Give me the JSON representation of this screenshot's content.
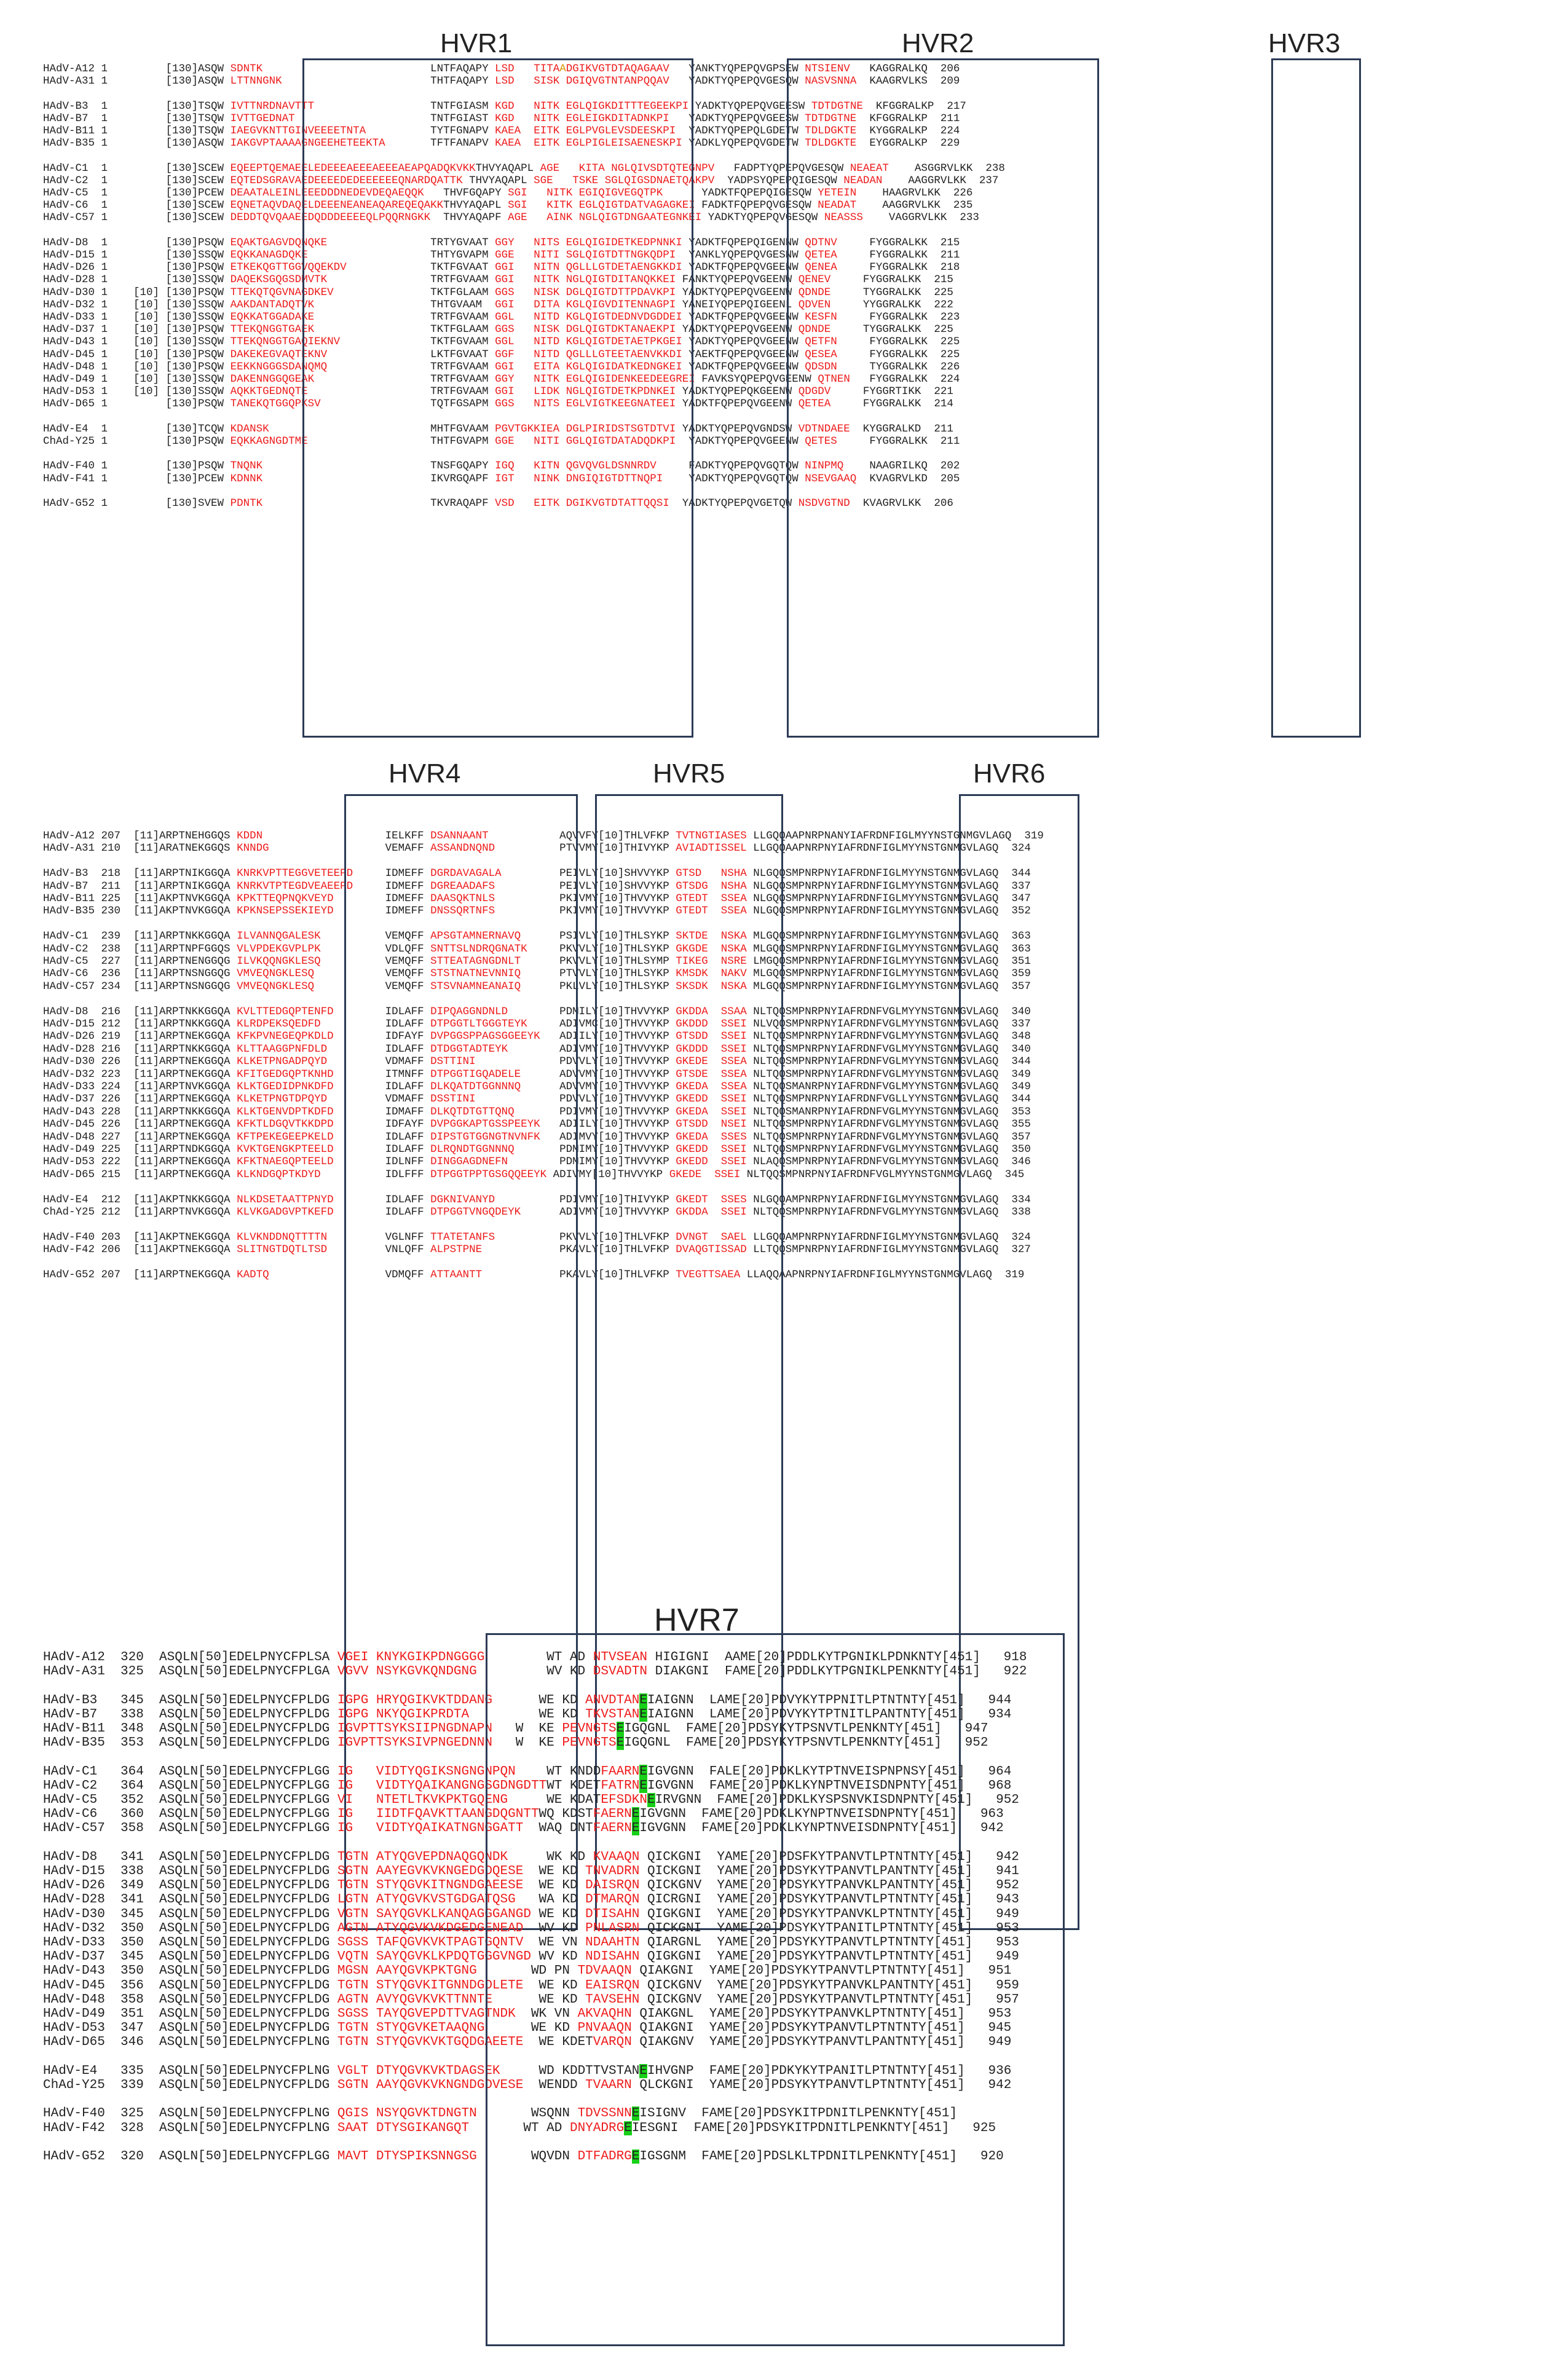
{
  "colors": {
    "text": "#222222",
    "hypervariable": "#ee1c1c",
    "substitution": "#d79400",
    "conserved_highlight": "#18d018",
    "box": "#2b3a55"
  },
  "panel_titles": {
    "p1": [
      "HVR1",
      "HVR2",
      "HVR3"
    ],
    "p2": [
      "HVR4",
      "HVR5",
      "HVR6"
    ],
    "p3": [
      "HVR7"
    ]
  },
  "panel1": [
    "K|HAdV-A12 1         [130]ASQW |R|SDNTK                          |K|LNTFAQAPY |R|LSD  |K| |R|TITA|O|A|R|DGIKVGTDTAQAGAAV  |K| YANKTYQPEPQVGPSEW |R|NTSIENV  |K| KAGGRALKQ  206",
    "K|HAdV-A31 1         [130]ASQW |R|LTTNNGNK                       |K|THTFAQAPY |R|LSD  |K| |R|SISK|K| |R|DGIQVGTNTANPQQAV  |K| YADKTYQPEPQVGESQW |R|NASVSNNA |K| KAAGRVLKS  209",
    "",
    "K|HAdV-B3  1         [130]TSQW |R|IVTTNRDNAVTTT                  |K|TNTFGIASM |R|KGD  |K| |R|NITK|K| |R|EGLQIGKDITTTEGEEKPI|K| YADKTYQPEPQVGEESW |R|TDTDGTNE |K| KFGGRALKP  217",
    "K|HAdV-B7  1         [130]TSQW |R|IVTTGEDNAT                     |K|TNTFGIAST |R|KGD  |K| |R|NITK|K| |R|EGLEIGKDITADNKPI  |K| YADKTYQPEPQVGEESW |R|TDTDGTNE |K| KFGGRALKP  211",
    "K|HAdV-B11 1         [130]TSQW |R|IAEGVKNTTGINVEEEETNTA          |K|TYTFGNAPV |R|KAEA |K| |R|EITK|K| |R|EGLPVGLEVSDEESKPI |K| YADKTYQPEPQLGDETW |R|TDLDGKTE |K| KYGGRALKP  224",
    "K|HAdV-B35 1         [130]ASQW |R|IAKGVPTAAAAGNGEEHETEEKTA       |K|TFTFANAPV |R|KAEA |K| |R|EITK|K| |R|EGLPIGLEISAENESKPI|K| YADKLYQPEPQVGDETW |R|TDLDGKTE |K| EYGGRALKP  229",
    "",
    "K|HAdV-C1  1         [130]SCEW |R|EQEEPTQEMAEELEDEEEAEEEAEEEAEAPQADQKVKK|K|THVYAQAPL |R|AGE  |K| |R|KITA|K| |R|NGLQIVSDTQTEGNPV  |K| FADPTYQPEPQVGESQW |R|NEAEAT   |K| ASGGRVLKK  238",
    "K|HAdV-C2  1         [130]SCEW |R|EQTEDSGRAVAEDEEEEDEDEEEEEEQNARDQATTK |K|THVYAQAPL |R|SGE  |K| |R|TSKE|K| |R|SGLQIGSDNAETQAKPV |K| YADPSYQPEPQIGESQW |R|NEADAN   |K| AAGGRVLKK  237",
    "K|HAdV-C5  1         [130]PCEW |R|DEAATALEINLEEEDDDNEDEVDEQAEQQK   |K|THVFGQAPY |R|SGI  |K| |R|NITK|K| |R|EGIQIGVEGQTPK     |K| YADKTFQPEPQIGESQW |R|YETEIN   |K| HAAGRVLKK  226",
    "K|HAdV-C6  1         [130]SCEW |R|EQNETAQVDAQELDEEENEANEAQAREQEQAKK|K|THVYAQAPL |R|SGI  |K| |R|KITK|K| |R|EGLQIGTDATVAGAGKEI|K| FADKTFQPEPQVGESQW |R|NEADAT   |K| AAGGRVLKK  235",
    "K|HAdV-C57 1         [130]SCEW |R|DEDDTQVQAAEEDQDDDEEEEQLPQQRNGKK  |K|THVYAQAPF |R|AGE  |K| |R|AINK|K| |R|NGLQIGTDNGAATEGNKEI|K| YADKTYQPEPQVGESQW |R|NEASSS   |K| VAGGRVLKK  233",
    "",
    "K|HAdV-D8  1         [130]PSQW |R|EQAKTGAGVDQNQKE                |K|TRTYGVAAT |R|GGY  |K| |R|NITS|K| |R|EGLQIGIDETKEDPNNKI|K| YADKTFQPEPQIGENNW |R|QDTNV    |K| FYGGRALKK  215",
    "K|HAdV-D15 1         [130]SSQW |R|EQKKANAGDQKE                   |K|THTYGVAPM |R|GGE  |K| |R|NITI|K| |R|SGLQIGTDTTNGKQDPI |K| YANKLYQPEPQVGESNW |R|QETEA    |K| FYGGRALKK  211",
    "K|HAdV-D26 1         [130]PSQW |R|ETKEKQGTTGGVQQEKDV             |K|TKTFGVAAT |R|GGI  |K| |R|NITN|K| |R|QGLLLGTDETAENGKKDI|K| YADKTFQPEPQVGEENW |R|QENEA    |K| FYGGRALKK  218",
    "K|HAdV-D28 1         [130]SSQW |R|DAQEKSGQGSDMVTK                |K|TRTFGVAAM |R|GGI  |K| |R|NITK|K| |R|NGLQIGTDITANQKKEI|K| FANKTYQPEPQVGEENW |R|QENEV    |K| FYGGRALKK  215",
    "K|HAdV-D30 1    [10] [130]PSQW |R|TTEKQTQGVNAGDKEV               |K|TKTFGLAAM |R|GGS  |K| |R|NISK|K| |R|DGLQIGTDTTPDAVKPI|K| YADKTYQPEPQVGEENW |R|QDNDE    |K| TYGGRALKK  225",
    "K|HAdV-D32 1    [10] [130]SSQW |R|AAKDANTADQTVK                  |K|THTGVAAM  |R|GGI  |K| |R|DITA|K| |R|KGLQIGVDITENNAGPI|K| YANEIYQPEPQIGEENL |R|QDVEN    |K| YYGGRALKK  222",
    "K|HAdV-D33 1    [10] [130]SSQW |R|EQKKATGGADAKE                  |K|TRTFGVAAM |R|GGL  |K| |R|NITD|K| |R|KGLQIGTDEDNVDGDDEI|K| YADKTFQPEPQVGEENW |R|KESFN    |K| FYGGRALKK  223",
    "K|HAdV-D37 1    [10] [130]PSQW |R|TTEKQNGGTGAEK                  |K|TKTFGLAAM |R|GGS  |K| |R|NISK|K| |R|DGLQIGTDKTANAEKPI|K| YADKTYQPEPQVGEENW |R|QDNDE    |K| TYGGRALKK  225",
    "K|HAdV-D43 1    [10] [130]SSQW |R|TTEKQNGGTGAQIEKNV              |K|TKTFGVAAM |R|GGL  |K| |R|NITD|K| |R|KGLQIGTDETAETPKGEI|K| YADKTYQPEPQVGEENW |R|QETFN    |K| FYGGRALKK  225",
    "K|HAdV-D45 1    [10] [130]PSQW |R|DAKEKEGVAQTEKNV                |K|LKTFGVAAT |R|GGF  |K| |R|NITD|K| |R|QGLLLGTEETAENVKKDI|K| YAEKTFQPEPQVGEENW |R|QESEA    |K| FYGGRALKK  225",
    "K|HAdV-D48 1    [10] [130]PSQW |R|EEKKNGGGSDANQMQ                |K|TRTFGVAAM |R|GGI  |K| |R|EITA|K| |R|KGLQIGIDATKEDNGKEI|K| YADKTFQPEPQVGEENW |R|QDSDN    |K| TYGGRALKK  226",
    "K|HAdV-D49 1    [10] [130]SSQW |R|DAKENNGGQGEAK                  |K|TRTFGVAAM |R|GGY  |K| |R|NITK|K| |R|EGLQIGIDENKEEDEEGREI|K| FAVKSYQPEPQVGEENW |R|QTNEN  |K| FYGGRALKK  224",
    "K|HAdV-D53 1    [10] [130]SSQW |R|AQKKTGEDNQTE                   |K|TRTFGVAAM |R|GGI  |K| |R|LIDK|K| |R|NGLQIGTDETKPDNKEI|K| YADKTYQPEPQKGEENW |R|QDGDV    |K| FYGGRTIKK  221",
    "K|HAdV-D65 1         [130]PSQW |R|TANEKQTGGQPKSV                 |K|TQTFGSAPM |R|GGS  |K| |R|NITS|K| |R|EGLVIGTKEEGNATEEI|K| YADKTFQPEPQVGEENW |R|QETEA    |K| FYGGRALKK  214",
    "",
    "K|HAdV-E4  1         [130]TCQW |R|KDANSK                         |K|MHTFGVAAM |R|PGVTGKKIEA|K| |R|DGLPIRIDSTSGTDTVI|K| YADKTYQPEPQVGNDSW |R|VDTNDAEE |K| KYGGRALKD  211",
    "K|ChAd-Y25 1         [130]PSQW |R|EQKKAGNGDTME                   |K|THTFGVAPM |R|GGE  |K| |R|NITI|K| |R|GGLQIGTDATADQDKPI |K| YADKTYQPEPQVGEENW |R|QETES    |K| FYGGRALKK  211",
    "",
    "K|HAdV-F40 1         [130]PSQW |R|TNQNK                          |K|TNSFGQAPY |R|IGQ  |K| |R|KITN|K| |R|QGVQVGLDSNNRDV    |K| FADKTYQPEPQVGQTQW |R|NINPMQ   |K| NAAGRILKQ  202",
    "K|HAdV-F41 1         [130]PCEW |R|KDNNK                          |K|IKVRGQAPF |R|IGT  |K| |R|NINK|K| |R|DNGIQIGTDTTNQPI   |K| YADKTYQPEPQVGQTQW |R|NSEVGAAQ |K| KVAGRVLKD  205",
    "",
    "K|HAdV-G52 1         [130]SVEW |R|PDNTK                          |K|TKVRAQAPF |R|VSD  |K| |R|EITK|K| |R|DGIKVGTDTATTQQSI |K| YADKTYQPEPQVGETQW |R|NSDVGTND |K| KVAGRVLKK  206"
  ],
  "panel2": [
    "K|HAdV-A12 207  [11]ARPTNEHGGQS |R|KDDN                  |K| IELKFF |R|DSANNAANT          |K| AQVVFY[10]THLVFKP |R|TVTNGTIASES|K| LLGQQAAPNRPNANYIAFRDNFIGLMYYNSTGNMGVLAGQ  319",
    "K|HAdV-A31 210  [11]ARATNEKGGQS |R|KNNDG                 |K| VEMAFF |R|ASSANDNQND         |K| PTVVMY[10]THIVYKP |R|AVIADTISSEL|K| LLGQQAAPNRPNYIAFRDNFIGLMYYNSTGNMGVLAGQ  324",
    "",
    "K|HAdV-B3  218  [11]ARPTNIKGGQA |R|KNRKVPTTEGGVETEEPD    |K| IDMEFF |R|DGRDAVAGALA        |K| PEIVLY[10]SHVVYKP |R|GTSD   NSHA|K| NLGQQSMPNRPNYIAFRDNFIGLMYYNSTGNMGVLAGQ  344",
    "K|HAdV-B7  211  [11]ARPTNIKGGQA |R|KNRKVTPTEGDVEAEEPD    |K| IDMEFF |R|DGREAADAFS         |K| PEIVLY[10]SHVVYKP |R|GTSDG  NSHA|K| NLGQQSMPNRPNYIAFRDNFIGLMYYNSTGNMGVLAGQ  337",
    "K|HAdV-B11 225  [11]AKPTNVKGGQA |R|KPKTTEQPNQKVEYD       |K| IDMEFF |R|DAASQKTNLS         |K| PKIVMY[10]THVVYKP |R|GTEDT  SSEA|K| NLGQQSMPNRPNYIAFRDNFIGLMYYNSTGNMGVLAGQ  347",
    "K|HAdV-B35 230  [11]AKPTNVKGGQA |R|KPKNSEPSSEKIEYD       |K| IDMEFF |R|DNSSQRTNFS         |K| PKIVMY[10]THVVYKP |R|GTEDT  SSEA|K| NLGQQSMPNRPNYIAFRDNFIGLMYYNSTGNMGVLAGQ  352",
    "",
    "K|HAdV-C1  239  [11]ARPTNKKGGQA |R|ILVANNQGALESK         |K| VEMQFF |R|APSGTAMNERNAVQ     |K| PSIVLY[10]THLSYKP |R|SKTDE  NSKA|K| MLGQQSMPNRPNYIAFRDNFIGLMYYNSTGNMGVLAGQ  363",
    "K|HAdV-C2  238  [11]ARPTNPFGGQS |R|VLVPDEKGVPLPK         |K| VDLQFF |R|SNTTSLNDRQGNATK    |K| PKVVLY[10]THLSYKP |R|GKGDE  NSKA|K| MLGQQSMPNRPNYIAFRDNFIGLMYYNSTGNMGVLAGQ  363",
    "K|HAdV-C5  227  [11]ARPTNENGGQG |R|ILVKQQNGKLESQ         |K| VEMQFF |R|STTEATAGNGDNLT     |K| PKVVLY[10]THLSYMP |R|TIKEG  NSRE|K| LMGQQSMPNRPNYIAFRDNFIGLMYYNSTGNMGVLAGQ  351",
    "K|HAdV-C6  236  [11]ARPTNSNGGQG |R|VMVEQNGKLESQ          |K| VEMQFF |R|STSTNATNEVNNIQ     |K| PTVVLY[10]THLSYKP |R|KMSDK  NAKV|K| MLGQQSMPNRPNYIAFRDNFIGLMYYNSTGNMGVLAGQ  359",
    "K|HAdV-C57 234  [11]ARPTNSNGGQG |R|VMVEQNGKLESQ          |K| VEMQFF |R|STSVNAMNEANAIQ     |K| PKLVLY[10]THLSYKP |R|SKSDK  NSKA|K| MLGQQSMPNRPNYIAFRDNFIGLMYYNSTGNMGVLAGQ  357",
    "",
    "K|HAdV-D8  216  [11]ARPTNKKGGQA |R|KVLTTEDGQPTENFD       |K| IDLAFF |R|DIPQAGGNDNLD       |K| PDMILY[10]THVVYKP |R|GKDDA  SSAA|K| NLTQQSMPNRPNYIAFRDNFVGLMYYNSTGNMGVLAGQ  340",
    "K|HAdV-D15 212  [11]ARPTNKKGGQA |R|KLRDPEKSQEDFD         |K| IDLAFF |R|DTPGGTLTGGGTEYK    |K| ADIVMC[10]THVVYKP |R|GKDDD  SSEI|K| NLVQQSMPNRPNYIAFRDNFVGLMYYNSTGNMGVLAGQ  337",
    "K|HAdV-D26 219  [11]ARPTNEKGGQA |R|KFKPVNEGEQPKDLD       |K| IDFAYF |R|DVPGGSPPAGSGGEEYK  |K| ADIILY[10]THVVYKP |R|GTSDD  SSEI|K| NLTQQSMPNRPNYIAFRDNFVGLMYYNSTGNMGVLAGQ  348",
    "K|HAdV-D28 216  [11]ARPTNKKGGQA |R|KLTTAAGGPNFDLD        |K| IDLAFF |R|DTDGGTADTEYK       |K| ADIVMY[10]THVVYKP |R|GKDDD  SSEI|K| NLTQQSMPNRPNYIAFRDNFVGLMYYNSTGNMGVLAGQ  340",
    "K|HAdV-D30 226  [11]ARPTNEKGGQA |R|KLKETPNGADPQYD        |K| VDMAFF |R|DSTTINI            |K| PDVVLY[10]THVVYKP |R|GKEDE  SSEA|K| NLTQQSMPNRPNYIAFRDNFVGLMYYNSTGNMGVLAGQ  344",
    "K|HAdV-D32 223  [11]ARPTNEKGGQA |R|KFITGEDGQPTKNHD       |K| ITMNFF |R|DTPGGTIGQADELE     |K| ADVVMY[10]THVVYKP |R|GTSDE  SSEA|K| NLTQQSMPNRPNYIAFRDNFVGLMYYNSTGNMGVLAGQ  349",
    "K|HAdV-D33 224  [11]ARPTNVKGGQA |R|KLKTGEDIDPNKDFD       |K| IDLAFF |R|DLKQATDTGGNNNQ     |K| ADVVMY[10]THVVYKP |R|GKEDA  SSEA|K| NLTQQSMANRPNYIAFRDNFVGLMYYNSTGNMGVLAGQ  349",
    "K|HAdV-D37 226  [11]ARPTNEKGGQA |R|KLKETPNGTDPQYD        |K| VDMAFF |R|DSSTINI            |K| PDVVLY[10]THVVYKP |R|GKEDD  SSEI|K| NLTQQSMPNRPNYIAFRDNFVGLLYYNSTGNMGVLAGQ  344",
    "K|HAdV-D43 228  [11]ARPTNKKGGQA |R|KLKTGENVDPTKDFD       |K| IDMAFF |R|DLKQTDTGTTQNQ      |K| PDIVMY[10]THVVYKP |R|GKEDA  SSEI|K| NLTQQSMANRPNYIAFRDNFVGLMYYNSTGNMGVLAGQ  353",
    "K|HAdV-D45 226  [11]ARPTNEKGGQA |R|KFKTLDGQVTKKDPD       |K| IDFAYF |R|DVPGGKAPTGSSPEEYK  |K| ADIILY[10]THVVYKP |R|GTSDD  NSEI|K| NLTQQSMPNRPNYIAFRDNFVGLMYYNSTGNMGVLAGQ  355",
    "K|HAdV-D48 227  [11]ARPTNEKGGQA |R|KFTPEKEGEEPKELD       |K| IDLAFF |R|DIPSTGTGGNGTNVNFK  |K| ADIMVY[10]THVVYKP |R|GKEDA  SSES|K| NLTQQSMPNRPNYIAFRDNFVGLMYYNSTGNMGVLAGQ  357",
    "K|HAdV-D49 225  [11]ARPTNDKGGQA |R|KVKTGENGKPTEELD       |K| IDLAFF |R|DLRQNDTGGNNNQ      |K| PDMIMY[10]THVVYKP |R|GKEDD  SSEI|K| NLTQQSMPNRPNYIAFRDNFVGLMYYNSTGNMGVLAGQ  350",
    "K|HAdV-D53 222  [11]ARPTNEKGGQA |R|KFKTNAEGQPTEELD       |K| IDLNFF |R|DINGGAGDNEFN       |K| PDMIMY[10]THVVYKP |R|GKEDD  SSEI|K| NLAQQSMPNRPNYIAFRDNFVGLMYYNSTGNMGVLAGQ  346",
    "K|HAdV-D65 215  [11]ARPTNEKGGQA |R|KLKNDGQPTKDYD         |K| IDLFFF |R|DTPGGTPPTGSGQQEEYK|K| ADIVMY[10]THVVYKP |R|GKEDE  SSEI|K| NLTQQSMPNRPNYIAFRDNFVGLMYYNSTGNMGVLAGQ  345",
    "",
    "K|HAdV-E4  212  [11]AKPTNKKGGQA |R|NLKDSETAATTPNYD       |K| IDLAFF |R|DGKNIVANYD         |K| PDIVMY[10]THIVYKP |R|GKEDT  SSES|K| NLGQQAMPNRPNYIAFRDNFIGLMYYNSTGNMGVLAGQ  334",
    "K|ChAd-Y25 212  [11]ARPTNVKGGQA |R|KLVKGADGVPTKEFD       |K| IDLAFF |R|DTPGGTVNGQDEYK     |K| ADIVMY[10]THVVYKP |R|GKDDA  SSEI|K| NLTQQSMPNRPNYIAFRDNFVGLMYYNSTGNMGVLAGQ  338",
    "",
    "K|HAdV-F40 203  [11]AKPTNEKGGQA |R|KLVKNDDNQTTTTN        |K| VGLNFF |R|TTATETANFS         |K| PKVVLY[10]THLVFKP |R|DVNGT  SAEL|K| LLGQQAMPNRPNYIAFRDNFIGLMYYNSTGNMGVLAGQ  324",
    "K|HAdV-F42 206  [11]AKPTNEKGGQA |R|SLITNGTDQTLTSD        |K| VNLQFF |R|ALPSTPNE           |K| PKAVLY[10]THLVFKP |R|DVAQGTISSAD|K| LLTQQSMPNRPNYIAFRDNFIGLMYYNSTGNMGVLAGQ  327",
    "",
    "K|HAdV-G52 207  [11]ARPTNEKGGQA |R|KADTQ                 |K| VDMQFF |R|ATTAANTT           |K| PKAVLY[10]THLVFKP |R|TVEGTTSAEA|K| LLAQQAAPNRPNYIAFRDNFIGLMYYNSTGNMGVLAGQ  319"
  ],
  "panel3": [
    "K|HAdV-A12  320  ASQLN[50]EDELPNYCFPLSA |R|VGEI KNYKGIKPDNGGGG       |K| WT AD |R|NTVSEAN|K| HIGIGNI |K| AAME[20]PDDLKYTPGNIKLPDNKNTY[451]   918",
    "K|HAdV-A31  325  ASQLN[50]EDELPNYCFPLGA |R|VGVV NSYKGVKQNDGNG        |K| WV KD |R|DSVADTN|K| DIAKGNI |K| FAME[20]PDDLKYTPGNIKLPENKNTY[451]   922",
    "",
    "K|HAdV-B3   345  ASQLN[50]EDELPNYCFPLDG |R|IGPG HRYQGIKVKTDDANG     |K| WE KD |R|ANVDTAN|G|E|K|IAIGNN |K| LAME[20]PDVYKYTPPNITLPTNTNTY[451]   944",
    "K|HAdV-B7   338  ASQLN[50]EDELPNYCFPLDG |R|IGPG NKYQGIKPRDTA        |K| WE KD |R|TKVSTAN|G|E|K|IAIGNN |K| LAME[20]PDVYKYTPTNITLPANTNTY[451]   934",
    "K|HAdV-B11  348  ASQLN[50]EDELPNYCFPLDG |R|IGVPTTSYKSIIPNGDNAPN  |K| W  KE |R|PEVNGTS|G|E|K|IGQGNL |K| FAME[20]PDSYKYTPSNVTLPENKNTY[451]   947",
    "K|HAdV-B35  353  ASQLN[50]EDELPNYCFPLDG |R|IGVPTTSYKSIVPNGEDNNN  |K| W  KE |R|PEVNGTS|G|E|K|IGQGNL |K| FAME[20]PDSYKYTPSNVTLPENKNTY[451]   952",
    "",
    "K|HAdV-C1   364  ASQLN[50]EDELPNYCFPLGG |R|IG   VIDTYQGIKSNGNGNPQN   |K| WT KNDD|R|FAARN|G|E|K|IGVGNN |K| FALE[20]PDKLKYTPTNVEISPNPNSY[451]   964",
    "K|HAdV-C2   364  ASQLN[50]EDELPNYCFPLGG |R|IG   VIDTYQAIKANGNGSGDNGDTT|K|WT KDET|R|FATRN|G|E|K|IGVGNN |K| FAME[20]PDKLKYNPTNVEISDNPNTY[451]   968",
    "K|HAdV-C5   352  ASQLN[50]EDELPNYCFPLGG |R|VI   NTETLTKVKPKTGQENG    |K| WE KDAT|R|EFSDKN|G|E|K|IRVGNN |K| FAME[20]PDKLKYSPSNVKISDNPNTY[451]   952",
    "K|HAdV-C6   360  ASQLN[50]EDELPNYCFPLGG |R|IG   IIDTFQAVKTTAANGDQGNTT|K|WQ KDST|R|FAERN|G|E|K|IGVGNN |K| FAME[20]PDKLKYNPTNVEISDNPNTY[451]   963",
    "K|HAdV-C57  358  ASQLN[50]EDELPNYCFPLGG |R|IG   VIDTYQAIKATNGNGGATT |K| WAQ DNT|R|FAERN|G|E|K|IGVGNN |K| FAME[20]PDKLKYNPTNVEISDNPNTY[451]   942",
    "",
    "K|HAdV-D8   341  ASQLN[50]EDELPNYCFPLDG |R|TGTN ATYQGVEPDNAQGQNDK    |K| WK KD |R|KVAAQN|K| QICKGNI |K| YAME[20]PDSFKYTPANVTLPTNTNTY[451]   942",
    "K|HAdV-D15  338  ASQLN[50]EDELPNYCFPLDG |R|SGTN AAYEGVKVKNGEDGDQESE |K| WE KD |R|TNVADRN|K| QICKGNI |K| YAME[20]PDSYKYTPANVTLPANTNTY[451]   941",
    "K|HAdV-D26  349  ASQLN[50]EDELPNYCFPLDG |R|TGTN STYQGVKITNGNDGAEESE |K| WE KD |R|DAISRQN|K| QICKGNV |K| YAME[20]PDSYKYTPANVKLPANTNTY[451]   952",
    "K|HAdV-D28  341  ASQLN[50]EDELPNYCFPLDG |R|LGTN ATYQGVKVSTGDGATQSG  |K| WA KD |R|DTMARQN|K| QICRGNI |K| YAME[20]PDSYKYTPANVTLPTNTNTY[451]   943",
    "K|HAdV-D30  345  ASQLN[50]EDELPNYCFPLDG |R|VGTN SAYQGVKLKANQAGGGANGD|K| WE KD |R|DTISAHN|K| QIGKGNI |K| YAME[20]PDSYKYTPANVKLPTNTNTY[451]   949",
    "K|HAdV-D32  350  ASQLN[50]EDELPNYCFPLDG |R|AGTN ATYQGVKVKDGEDGENEAD |K| WV KD |R|PNLASRN|K| QICKGNI |K| YAME[20]PDSYKYTPANITLPTNTNTY[451]   953",
    "K|HAdV-D33  350  ASQLN[50]EDELPNYCFPLDG |R|SGSS TAFQGVKVKTPAGTGQNTV |K| WE VN |R|NDAAHTN|K| QIARGNL |K| YAME[20]PDSYKYTPANVTLPTNTNTY[451]   953",
    "K|HAdV-D37  345  ASQLN[50]EDELPNYCFPLDG |R|VQTN SAYQGVKLKPDQTGGGVNGD|K| WV KD |R|NDISAHN|K| QIGKGNI |K| YAME[20]PDSYKYTPANVTLPTNTNTY[451]   949",
    "K|HAdV-D43  350  ASQLN[50]EDELPNYCFPLDG |R|MGSN AAYQGVKPKTGNG      |K| WD PN |R|TDVAAQN|K| QIAKGNI |K| YAME[20]PDSYKYTPANVTLPTNTNTY[451]   951",
    "K|HAdV-D45  356  ASQLN[50]EDELPNYCFPLDG |R|TGTN STYQGVKITGNNDGDLETE |K| WE KD |R|EAISRQN|K| QICKGNV |K| YAME[20]PDSYKYTPANVKLPANTNTY[451]   959",
    "K|HAdV-D48  358  ASQLN[50]EDELPNYCFPLDG |R|AGTN AVYQGVKVKTTNNTE     |K| WE KD |R|TAVSEHN|K| QICKGNV |K| YAME[20]PDSYKYTPANVTLPTNTNTY[451]   957",
    "K|HAdV-D49  351  ASQLN[50]EDELPNYCFPLDG |R|SGSS TAYQGVEPDTTVAGTNDK |K| WK VN |R|AKVAQHN|K| QIAKGNL |K| YAME[20]PDSYKYTPANVKLPTNTNTY[451]   953",
    "K|HAdV-D53  347  ASQLN[50]EDELPNYCFPLDG |R|TGTN STYQGVKETAAQNG     |K| WE KD |R|PNVAAQN|K| QIAKGNI |K| YAME[20]PDSYKYTPANVTLPTNTNTY[451]   945",
    "K|HAdV-D65  346  ASQLN[50]EDELPNYCFPLNG |R|TGTN STYQGVKVKTGQDGAEETE |K| WE KDET|R|VARQN|K| QIAKGNV |K| YAME[20]PDSYKYTPANVTLPANTNTY[451]   949",
    "",
    "K|HAdV-E4   335  ASQLN[50]EDELPNYCFPLNG |R|VGLT DTYQGVKVKTDAGSEK    |K| WD KDDTTVSTAN|G|E|K|IHVGNP |K| FAME[20]PDKYKYTPANITLPTNTNTY[451]   936",
    "K|ChAd-Y25  339  ASQLN[50]EDELPNYCFPLDG |R|SGTN AAYQGVKVKNGNDGDVESE |K| WENDD |R|TVAARN|K| QLCKGNI |K| YAME[20]PDSYKYTPANVTLPTNTNTY[451]   942",
    "",
    "K|HAdV-F40  325  ASQLN[50]EDELPNYCFPLNG |R|QGIS NSYQGVKTDNGTN      |K| WSQNN |R|TDVSSNN|G|E|K|ISIGNV |K| FAME[20]PDSYKITPDNITLPENKNTY[451]",
    "K|HAdV-F42  328  ASQLN[50]EDELPNYCFPLNG |R|SAAT DTYSGIKANGQT      |K| WT AD |R|DNYADRG|G|E|K|IESGNI |K| FAME[20]PDSYKITPDNITLPENKNTY[451]   925",
    "",
    "K|HAdV-G52  320  ASQLN[50]EDELPNYCFPLGG |R|MAVT DTYSPIKSNNGSG      |K| WQVDN |R|DTFADRG|G|E|K|IGSGNM |K| FAME[20]PDSLKLTPDNITLPENKNTY[451]   920"
  ]
}
